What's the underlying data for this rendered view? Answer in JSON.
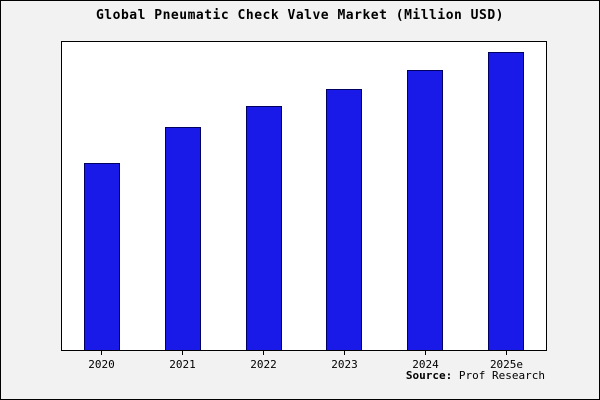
{
  "title": "Global Pneumatic Check Valve Market (Million USD)",
  "source": {
    "label": "Source:",
    "value": " Prof Research"
  },
  "chart_data": {
    "type": "bar",
    "title": "Global Pneumatic Check Valve Market (Million USD)",
    "categories": [
      "2020",
      "2021",
      "2022",
      "2023",
      "2024",
      "2025e"
    ],
    "values": [
      188,
      224,
      246,
      263,
      282,
      300
    ],
    "xlabel": "",
    "ylabel": "",
    "ylim": [
      0,
      310
    ],
    "grid": false,
    "legend": null,
    "bar_color": "#1a1ae8",
    "bar_border_color": "#000060",
    "annotation": "Source: Prof Research"
  }
}
